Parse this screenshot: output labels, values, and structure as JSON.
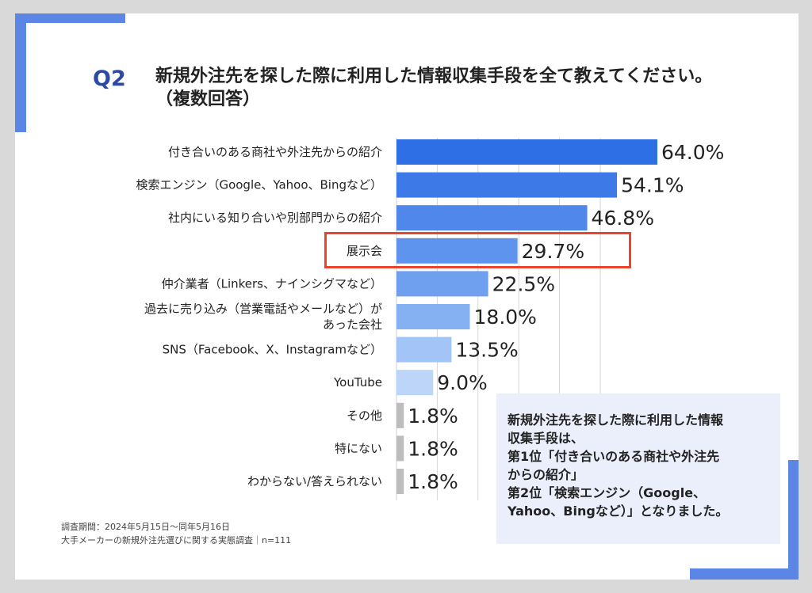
{
  "question": {
    "number": "Q2",
    "line1": "新規外注先を探した際に利用した情報収集手段を全て教えてください。",
    "line2": "（複数回答）"
  },
  "chart_data": {
    "type": "bar",
    "orientation": "horizontal",
    "categories": [
      [
        "付き合いのある商社や外注先からの紹介"
      ],
      [
        "検索エンジン（Google、Yahoo、Bingなど）"
      ],
      [
        "社内にいる知り合いや別部門からの紹介"
      ],
      [
        "展示会"
      ],
      [
        "仲介業者（Linkers、ナインシグマなど）"
      ],
      [
        "過去に売り込み（営業電話やメールなど）が",
        "あった会社"
      ],
      [
        "SNS（Facebook、X、Instagramなど）"
      ],
      [
        "YouTube"
      ],
      [
        "その他"
      ],
      [
        "特にない"
      ],
      [
        "わからない/答えられない"
      ]
    ],
    "values": [
      64.0,
      54.1,
      46.8,
      29.7,
      22.5,
      18.0,
      13.5,
      9.0,
      1.8,
      1.8,
      1.8
    ],
    "value_labels": [
      "64.0%",
      "54.1%",
      "46.8%",
      "29.7%",
      "22.5%",
      "18.0%",
      "13.5%",
      "9.0%",
      "1.8%",
      "1.8%",
      "1.8%"
    ],
    "bar_colors": [
      "#2f6fe6",
      "#3d7ae8",
      "#4f87ea",
      "#5e93ee",
      "#6fa0f0",
      "#85b0f2",
      "#a2c4f6",
      "#bcd5f8",
      "#bdbdbd",
      "#bdbdbd",
      "#bdbdbd"
    ],
    "xlim": [
      0,
      100
    ],
    "grid": true,
    "highlight_index": 3,
    "highlight_color": "#e8452c"
  },
  "summary": {
    "lines": [
      "新規外注先を探した際に利用した情報",
      "収集手段は、",
      "第1位「付き合いのある商社や外注先",
      "からの紹介」",
      "第2位「検索エンジン（Google、",
      "Yahoo、Bingなど）」となりました。"
    ]
  },
  "footnote": {
    "line1": "調査期間：2024年5月15日〜同年5月16日",
    "line2": "大手メーカーの新規外注先選びに関する実態調査｜n=111"
  }
}
